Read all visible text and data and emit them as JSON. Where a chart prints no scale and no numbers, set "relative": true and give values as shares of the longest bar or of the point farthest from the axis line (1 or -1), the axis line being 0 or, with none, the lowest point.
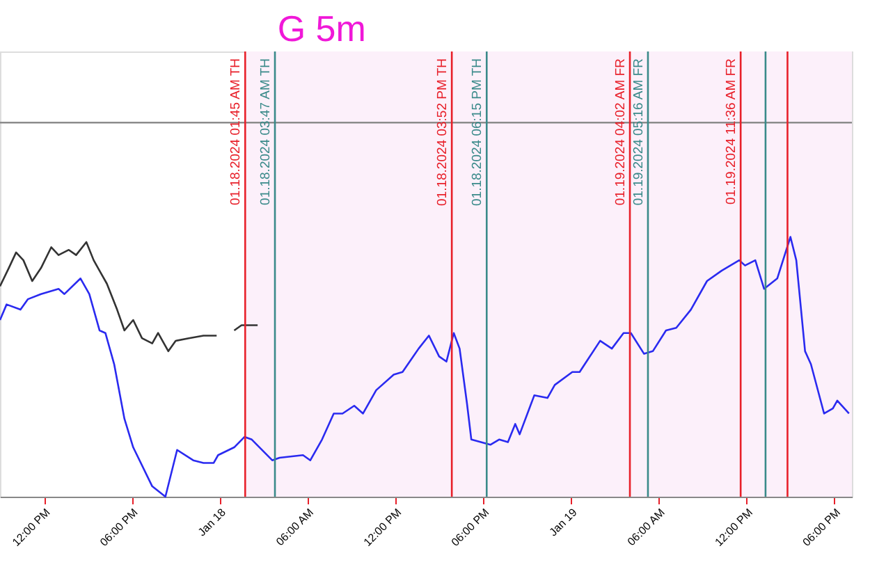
{
  "chart_data": {
    "type": "line",
    "title": "G 5m",
    "relative": true,
    "xlim": [
      "2024-01-17T09:00",
      "2024-01-19T19:12"
    ],
    "xticks": [
      {
        "value": "2024-01-17T12:00",
        "label": "12:00 PM"
      },
      {
        "value": "2024-01-17T18:00",
        "label": "06:00 PM"
      },
      {
        "value": "2024-01-18T00:00",
        "label": "Jan 18"
      },
      {
        "value": "2024-01-18T06:00",
        "label": "06:00 AM"
      },
      {
        "value": "2024-01-18T12:00",
        "label": "12:00 PM"
      },
      {
        "value": "2024-01-18T18:00",
        "label": "06:00 PM"
      },
      {
        "value": "2024-01-19T00:00",
        "label": "Jan 19"
      },
      {
        "value": "2024-01-19T06:00",
        "label": "06:00 AM"
      },
      {
        "value": "2024-01-19T12:00",
        "label": "12:00 PM"
      },
      {
        "value": "2024-01-19T18:00",
        "label": "06:00 PM"
      }
    ],
    "grid": false,
    "series": [
      {
        "color": "#2a2af0",
        "x": [
          "2024-01-17T09:00",
          "2024-01-17T09:27",
          "2024-01-17T10:24",
          "2024-01-17T10:54",
          "2024-01-17T11:48",
          "2024-01-17T13:00",
          "2024-01-17T13:24",
          "2024-01-17T14:30",
          "2024-01-17T15:06",
          "2024-01-17T15:48",
          "2024-01-17T16:12",
          "2024-01-17T16:48",
          "2024-01-17T17:30",
          "2024-01-17T18:06",
          "2024-01-17T19:24",
          "2024-01-17T20:18",
          "2024-01-17T21:06",
          "2024-01-17T22:12",
          "2024-01-17T22:54",
          "2024-01-17T23:36",
          "2024-01-17T23:54",
          "2024-01-18T01:00",
          "2024-01-18T01:42",
          "2024-01-18T02:12",
          "2024-01-18T03:36",
          "2024-01-18T04:06",
          "2024-01-18T05:42",
          "2024-01-18T06:12",
          "2024-01-18T07:00",
          "2024-01-18T07:48",
          "2024-01-18T08:24",
          "2024-01-18T09:12",
          "2024-01-18T09:48",
          "2024-01-18T10:42",
          "2024-01-18T11:54",
          "2024-01-18T12:30",
          "2024-01-18T13:36",
          "2024-01-18T14:18",
          "2024-01-18T15:00",
          "2024-01-18T15:30",
          "2024-01-18T16:00",
          "2024-01-18T16:24",
          "2024-01-18T16:54",
          "2024-01-18T17:12",
          "2024-01-18T18:30",
          "2024-01-18T19:06",
          "2024-01-18T19:42",
          "2024-01-18T20:12",
          "2024-01-18T20:30",
          "2024-01-18T21:30",
          "2024-01-18T22:24",
          "2024-01-18T22:54",
          "2024-01-19T00:06",
          "2024-01-19T00:36",
          "2024-01-19T01:18",
          "2024-01-19T02:00",
          "2024-01-19T02:48",
          "2024-01-19T03:36",
          "2024-01-19T04:06",
          "2024-01-19T05:00",
          "2024-01-19T05:36",
          "2024-01-19T06:30",
          "2024-01-19T07:12",
          "2024-01-19T08:12",
          "2024-01-19T09:18",
          "2024-01-19T10:18",
          "2024-01-19T11:30",
          "2024-01-19T11:54",
          "2024-01-19T12:36",
          "2024-01-19T13:12",
          "2024-01-19T14:06",
          "2024-01-19T15:00",
          "2024-01-19T15:24",
          "2024-01-19T16:00",
          "2024-01-19T16:24",
          "2024-01-19T17:18",
          "2024-01-19T17:54",
          "2024-01-19T18:12",
          "2024-01-19T19:00"
        ],
        "values": [
          0.68,
          0.74,
          0.72,
          0.76,
          0.78,
          0.8,
          0.78,
          0.84,
          0.78,
          0.64,
          0.63,
          0.51,
          0.3,
          0.19,
          0.04,
          0,
          0.18,
          0.14,
          0.13,
          0.13,
          0.16,
          0.19,
          0.23,
          0.22,
          0.14,
          0.15,
          0.16,
          0.14,
          0.22,
          0.32,
          0.32,
          0.35,
          0.32,
          0.41,
          0.47,
          0.48,
          0.57,
          0.62,
          0.54,
          0.52,
          0.63,
          0.57,
          0.36,
          0.22,
          0.2,
          0.22,
          0.21,
          0.28,
          0.24,
          0.39,
          0.38,
          0.43,
          0.48,
          0.48,
          0.54,
          0.6,
          0.57,
          0.63,
          0.63,
          0.55,
          0.56,
          0.64,
          0.65,
          0.72,
          0.83,
          0.87,
          0.91,
          0.89,
          0.91,
          0.8,
          0.84,
          1.0,
          0.91,
          0.56,
          0.51,
          0.32,
          0.34,
          0.37,
          0.32
        ]
      },
      {
        "color": "#333333",
        "x": [
          "2024-01-17T09:00",
          "2024-01-17T09:36",
          "2024-01-17T10:06",
          "2024-01-17T10:36",
          "2024-01-17T11:12",
          "2024-01-17T11:48",
          "2024-01-17T12:30",
          "2024-01-17T13:00",
          "2024-01-17T13:42",
          "2024-01-17T14:12",
          "2024-01-17T14:54",
          "2024-01-17T15:24",
          "2024-01-17T15:54",
          "2024-01-17T16:18",
          "2024-01-17T17:00",
          "2024-01-17T17:30",
          "2024-01-17T18:06",
          "2024-01-17T18:42",
          "2024-01-17T19:24",
          "2024-01-17T19:48",
          "2024-01-17T20:30",
          "2024-01-17T21:00",
          "2024-01-17T21:54",
          "2024-01-17T22:54",
          "2024-01-17T23:48",
          "2024-01-18T00:24",
          "2024-01-18T01:00",
          "2024-01-18T01:30",
          "2024-01-18T02:36"
        ],
        "values": [
          0.81,
          0.88,
          0.94,
          0.91,
          0.83,
          0.88,
          0.96,
          0.93,
          0.95,
          0.93,
          0.98,
          0.91,
          0.86,
          0.82,
          0.72,
          0.64,
          0.68,
          0.61,
          0.59,
          0.63,
          0.56,
          0.6,
          0.61,
          0.62,
          0.62,
          null,
          0.64,
          0.66,
          0.66
        ]
      }
    ],
    "ref_lines": [
      {
        "axis": "y",
        "value": 1.44,
        "label": null,
        "color": "#8c8c8c",
        "line_style": "solid"
      },
      {
        "axis": "x",
        "value": "2024-01-18T01:45",
        "label": "01.18.2024  01:45 AM TH",
        "color": "#e8202a",
        "line_style": "solid"
      },
      {
        "axis": "x",
        "value": "2024-01-18T03:47",
        "label": "01.18.2024  03:47 AM TH",
        "color": "#3a8a8a",
        "line_style": "solid"
      },
      {
        "axis": "x",
        "value": "2024-01-18T15:52",
        "label": "01.18.2024  03:52 PM TH",
        "color": "#e8202a",
        "line_style": "solid"
      },
      {
        "axis": "x",
        "value": "2024-01-18T18:15",
        "label": "01.18.2024  06:15 PM TH",
        "color": "#3a8a8a",
        "line_style": "solid"
      },
      {
        "axis": "x",
        "value": "2024-01-19T04:02",
        "label": "01.19.2024  04:02 AM FR",
        "color": "#e8202a",
        "line_style": "solid"
      },
      {
        "axis": "x",
        "value": "2024-01-19T05:16",
        "label": "01.19.2024  05:16 AM FR",
        "color": "#3a8a8a",
        "line_style": "solid"
      },
      {
        "axis": "x",
        "value": "2024-01-19T11:36",
        "label": "01.19.2024  11:36 AM FR",
        "color": "#e8202a",
        "line_style": "solid"
      },
      {
        "axis": "x",
        "value": "2024-01-19T13:18",
        "label": null,
        "color": "#3a8a8a",
        "line_style": "solid"
      },
      {
        "axis": "x",
        "value": "2024-01-19T14:48",
        "label": null,
        "color": "#e8202a",
        "line_style": "solid"
      }
    ],
    "bands": [
      {
        "axis": "x",
        "from": "2024-01-18T01:45",
        "to": "2024-01-19T19:12",
        "label": null,
        "color": "#fcf0fa"
      }
    ]
  }
}
